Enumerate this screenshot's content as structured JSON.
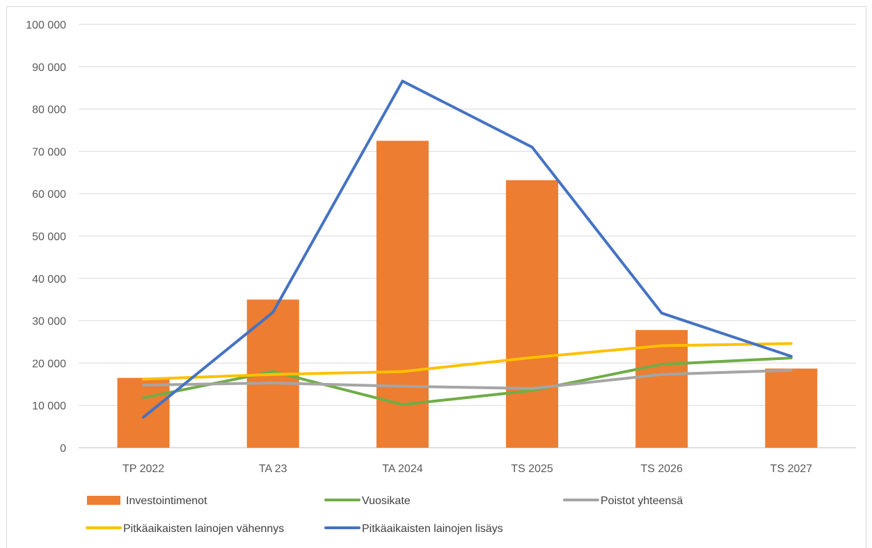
{
  "chart_data": {
    "type": "bar",
    "categories": [
      "TP 2022",
      "TA 23",
      "TA 2024",
      "TS 2025",
      "TS 2026",
      "TS 2027"
    ],
    "ylim": [
      0,
      100000
    ],
    "yticks": [
      0,
      10000,
      20000,
      30000,
      40000,
      50000,
      60000,
      70000,
      80000,
      90000,
      100000
    ],
    "ytick_labels": [
      "0",
      "10 000",
      "20 000",
      "30 000",
      "40 000",
      "50 000",
      "60 000",
      "70 000",
      "80 000",
      "90 000",
      "100 000"
    ],
    "grid": true,
    "legend_position": "bottom",
    "bar_series": {
      "name": "Investointimenot",
      "color": "#ed7d31",
      "values": [
        16500,
        35000,
        72500,
        63200,
        27800,
        18700
      ]
    },
    "line_series": [
      {
        "name": "Vuosikate",
        "color": "#70ad47",
        "values": [
          11800,
          18000,
          10200,
          13500,
          19700,
          21200
        ]
      },
      {
        "name": "Poistot yhteensä",
        "color": "#a5a5a5",
        "values": [
          14800,
          15300,
          14500,
          14000,
          17300,
          18300
        ]
      },
      {
        "name": "Pitkäaikaisten lainojen vähennys",
        "color": "#ffc000",
        "values": [
          16200,
          17300,
          18000,
          21300,
          24100,
          24600
        ]
      },
      {
        "name": "Pitkäaikaisten lainojen lisäys",
        "color": "#4472c4",
        "values": [
          7200,
          32000,
          86600,
          71000,
          31800,
          21600
        ]
      }
    ]
  }
}
